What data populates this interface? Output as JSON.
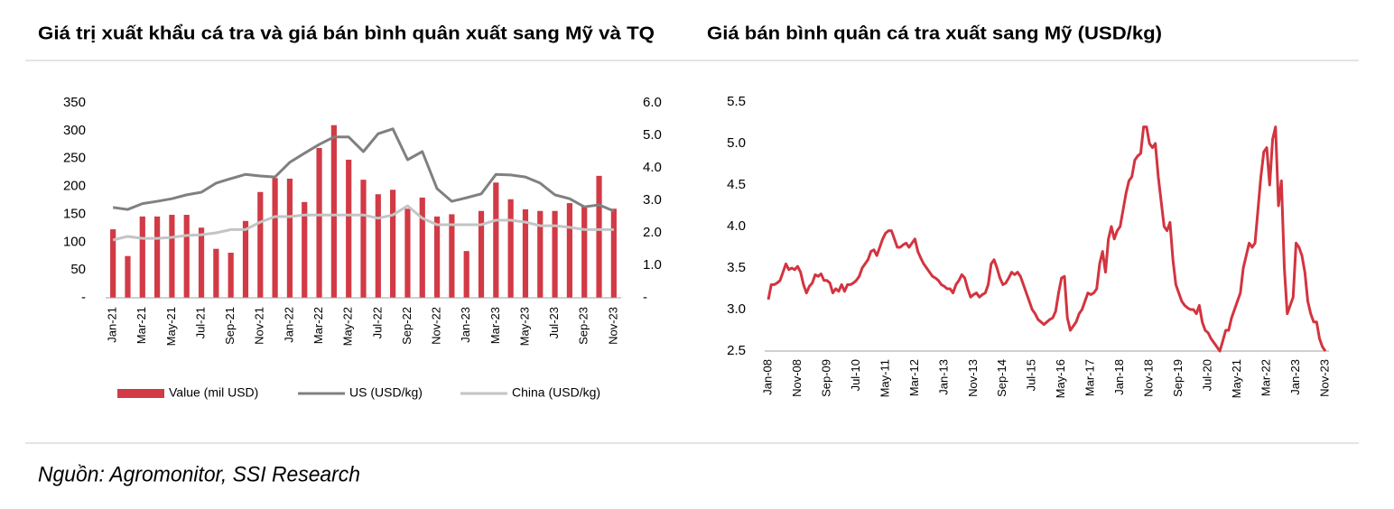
{
  "chart_data": [
    {
      "type": "bar",
      "title": "Giá trị xuất khẩu cá tra và giá bán bình quân xuất sang Mỹ và TQ",
      "categories": [
        "Jan-21",
        null,
        "Mar-21",
        null,
        "May-21",
        null,
        "Jul-21",
        null,
        "Sep-21",
        null,
        "Nov-21",
        null,
        "Jan-22",
        null,
        "Mar-22",
        null,
        "May-22",
        null,
        "Jul-22",
        null,
        "Sep-22",
        null,
        "Nov-22",
        null,
        "Jan-23",
        null,
        "Mar-23",
        null,
        "May-23",
        null,
        "Jul-23",
        null,
        "Sep-23",
        null,
        "Nov-23"
      ],
      "series": [
        {
          "name": "Value (mil USD)",
          "type": "bar",
          "color": "#d23a45",
          "values": [
            123,
            75,
            146,
            146,
            149,
            149,
            126,
            88,
            81,
            138,
            190,
            215,
            214,
            172,
            269,
            310,
            248,
            212,
            186,
            194,
            160,
            180,
            146,
            150,
            84,
            156,
            207,
            177,
            159,
            156,
            156,
            170,
            164,
            219,
            160
          ]
        },
        {
          "name": "US (USD/kg)",
          "type": "line",
          "axis": "y2",
          "color": "#808080",
          "values": [
            2.78,
            2.72,
            2.9,
            2.97,
            3.05,
            3.17,
            3.25,
            3.53,
            3.67,
            3.8,
            3.75,
            3.72,
            4.17,
            4.45,
            4.72,
            4.95,
            4.95,
            4.5,
            5.05,
            5.2,
            4.25,
            4.5,
            3.36,
            2.97,
            3.08,
            3.2,
            3.8,
            3.78,
            3.72,
            3.53,
            3.17,
            3.05,
            2.8,
            2.86,
            2.67
          ]
        },
        {
          "name": "China (USD/kg)",
          "type": "line",
          "axis": "y2",
          "color": "#c4c4c4",
          "values": [
            1.78,
            1.89,
            1.83,
            1.83,
            1.86,
            1.92,
            1.94,
            2.0,
            2.1,
            2.1,
            2.33,
            2.5,
            2.5,
            2.55,
            2.55,
            2.55,
            2.55,
            2.55,
            2.45,
            2.55,
            2.83,
            2.45,
            2.25,
            2.25,
            2.25,
            2.25,
            2.39,
            2.39,
            2.33,
            2.22,
            2.22,
            2.17,
            2.1,
            2.1,
            2.1
          ]
        }
      ],
      "ylim": [
        0,
        350
      ],
      "yticks": [
        {
          "value": 0,
          "label": "-"
        },
        50,
        100,
        150,
        200,
        250,
        300,
        350
      ],
      "y2lim": [
        0,
        6
      ],
      "y2ticks": [
        {
          "value": 0,
          "label": "-"
        },
        {
          "value": 1,
          "label": "1.0"
        },
        {
          "value": 2,
          "label": "2.0"
        },
        {
          "value": 3,
          "label": "3.0"
        },
        {
          "value": 4,
          "label": "4.0"
        },
        {
          "value": 5,
          "label": "5.0"
        },
        {
          "value": 6,
          "label": "6.0"
        }
      ],
      "legend": "bottom"
    },
    {
      "type": "line",
      "title": "Giá bán bình quân cá tra xuất sang Mỹ (USD/kg)",
      "categories": [
        "Jan-08",
        null,
        null,
        null,
        null,
        null,
        null,
        null,
        null,
        null,
        "Nov-08",
        null,
        null,
        null,
        null,
        null,
        null,
        null,
        null,
        null,
        "Sep-09",
        null,
        null,
        null,
        null,
        null,
        null,
        null,
        null,
        null,
        "Jul-10",
        null,
        null,
        null,
        null,
        null,
        null,
        null,
        null,
        null,
        "May-11",
        null,
        null,
        null,
        null,
        null,
        null,
        null,
        null,
        null,
        "Mar-12",
        null,
        null,
        null,
        null,
        null,
        null,
        null,
        null,
        null,
        "Jan-13",
        null,
        null,
        null,
        null,
        null,
        null,
        null,
        null,
        null,
        "Nov-13",
        null,
        null,
        null,
        null,
        null,
        null,
        null,
        null,
        null,
        "Sep-14",
        null,
        null,
        null,
        null,
        null,
        null,
        null,
        null,
        null,
        "Jul-15",
        null,
        null,
        null,
        null,
        null,
        null,
        null,
        null,
        null,
        "May-16",
        null,
        null,
        null,
        null,
        null,
        null,
        null,
        null,
        null,
        "Mar-17",
        null,
        null,
        null,
        null,
        null,
        null,
        null,
        null,
        null,
        "Jan-18",
        null,
        null,
        null,
        null,
        null,
        null,
        null,
        null,
        null,
        "Nov-18",
        null,
        null,
        null,
        null,
        null,
        null,
        null,
        null,
        null,
        "Sep-19",
        null,
        null,
        null,
        null,
        null,
        null,
        null,
        null,
        null,
        "Jul-20",
        null,
        null,
        null,
        null,
        null,
        null,
        null,
        null,
        null,
        "May-21",
        null,
        null,
        null,
        null,
        null,
        null,
        null,
        null,
        null,
        "Mar-22",
        null,
        null,
        null,
        null,
        null,
        null,
        null,
        null,
        null,
        "Jan-23",
        null,
        null,
        null,
        null,
        null,
        null,
        null,
        null,
        null,
        "Nov-23"
      ],
      "color": "#d3343f",
      "values": [
        3.12,
        3.3,
        3.3,
        3.32,
        3.35,
        3.45,
        3.55,
        3.48,
        3.5,
        3.48,
        3.52,
        3.45,
        3.3,
        3.2,
        3.28,
        3.32,
        3.42,
        3.4,
        3.43,
        3.35,
        3.35,
        3.32,
        3.2,
        3.25,
        3.22,
        3.3,
        3.22,
        3.3,
        3.3,
        3.32,
        3.35,
        3.4,
        3.5,
        3.55,
        3.6,
        3.7,
        3.72,
        3.65,
        3.75,
        3.85,
        3.92,
        3.95,
        3.95,
        3.85,
        3.75,
        3.75,
        3.78,
        3.8,
        3.75,
        3.8,
        3.85,
        3.7,
        3.62,
        3.55,
        3.5,
        3.45,
        3.4,
        3.38,
        3.35,
        3.3,
        3.28,
        3.25,
        3.25,
        3.2,
        3.3,
        3.35,
        3.42,
        3.38,
        3.25,
        3.15,
        3.18,
        3.2,
        3.15,
        3.18,
        3.2,
        3.3,
        3.55,
        3.6,
        3.5,
        3.38,
        3.3,
        3.32,
        3.38,
        3.45,
        3.42,
        3.45,
        3.4,
        3.3,
        3.2,
        3.1,
        3.0,
        2.95,
        2.88,
        2.85,
        2.82,
        2.85,
        2.88,
        2.9,
        2.98,
        3.2,
        3.38,
        3.4,
        2.9,
        2.75,
        2.8,
        2.85,
        2.95,
        3.0,
        3.1,
        3.2,
        3.18,
        3.2,
        3.25,
        3.55,
        3.7,
        3.45,
        3.85,
        4.0,
        3.85,
        3.95,
        4.0,
        4.2,
        4.4,
        4.55,
        4.6,
        4.8,
        4.85,
        4.88,
        5.2,
        5.2,
        5.0,
        4.95,
        5.0,
        4.6,
        4.3,
        4.0,
        3.95,
        4.05,
        3.6,
        3.3,
        3.2,
        3.1,
        3.05,
        3.02,
        3.0,
        3.0,
        2.95,
        3.05,
        2.85,
        2.75,
        2.72,
        2.65,
        2.6,
        2.55,
        2.5,
        2.62,
        2.75,
        2.75,
        2.9,
        3.0,
        3.1,
        3.2,
        3.5,
        3.65,
        3.8,
        3.75,
        3.8,
        4.2,
        4.6,
        4.9,
        4.95,
        4.5,
        5.05,
        5.2,
        4.25,
        4.55,
        3.5,
        2.95,
        3.05,
        3.15,
        3.8,
        3.75,
        3.65,
        3.45,
        3.1,
        2.95,
        2.85,
        2.85,
        2.65,
        2.55,
        2.5
      ],
      "ylim": [
        2.5,
        5.5
      ],
      "yticks": [
        2.5,
        {
          "value": 3,
          "label": "3.0"
        },
        3.5,
        {
          "value": 4,
          "label": "4.0"
        },
        4.5,
        {
          "value": 5,
          "label": "5.0"
        },
        5.5
      ]
    }
  ],
  "source": "Nguồn: Agromonitor, SSI Research"
}
